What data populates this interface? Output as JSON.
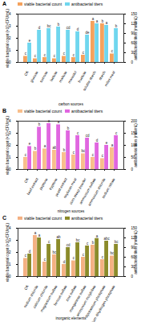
{
  "chart_data": [
    {
      "type": "bar",
      "title": "A",
      "legend": "top",
      "xlabel": "carbon sources",
      "ylabel": "viable bacterial count (×10⁸CFU/mL)",
      "y2label": "antibacterial titers (mm/mL)",
      "categories": [
        "CK",
        "glucose",
        "sucrose",
        "lactose",
        "maltose",
        "mannitol",
        "fructose",
        "soluble starch",
        "starch",
        "millet meal"
      ],
      "series": [
        {
          "name": "viable bacterial count",
          "color": "#f5a25d",
          "values": [
            0.5,
            0.3,
            0.4,
            0.3,
            0.5,
            0.4,
            0.6,
            3.4,
            3.2,
            0.7
          ],
          "letters": [
            "c",
            "c",
            "c",
            "c",
            "c",
            "c",
            "c",
            "a",
            "b",
            "c"
          ]
        },
        {
          "name": "antibacterial titers",
          "color": "#6fd6ee",
          "axis": "y2",
          "values": [
            60,
            100,
            105,
            110,
            100,
            95,
            85,
            120,
            115,
            105
          ],
          "letters": [
            "e",
            "d",
            "bc",
            "b",
            "cd",
            "d",
            "de",
            "a",
            "a",
            "b"
          ]
        }
      ],
      "ylim": [
        0,
        4
      ],
      "yticks": [
        0,
        1,
        2,
        3,
        4
      ],
      "y2lim": [
        0,
        150
      ],
      "y2ticks": [
        0,
        30,
        60,
        90,
        120,
        150
      ]
    },
    {
      "type": "bar",
      "title": "B",
      "legend": "top",
      "xlabel": "nitrogen sources",
      "ylabel": "viable bacterial count (×10⁸CFU/mL)",
      "y2label": "antibacterial titers (mm/mL)",
      "categories": [
        "CK",
        "beef extract",
        "peptone",
        "tryptone",
        "yeast extract",
        "soybean meal",
        "corn steep powder",
        "ammonium sulfate",
        "ammonium chloride",
        "sodium nitrate"
      ],
      "series": [
        {
          "name": "viable bacterial count",
          "color": "#f8bf8c",
          "values": [
            1.0,
            1.5,
            1.7,
            1.6,
            1.4,
            1.2,
            1.3,
            1.0,
            0.9,
            1.8
          ],
          "letters": [
            "c",
            "b",
            "a",
            "ab",
            "b",
            "c",
            "bc",
            "c",
            "c",
            "a"
          ]
        },
        {
          "name": "antibacterial titers",
          "color": "#e066e0",
          "axis": "y2",
          "values": [
            95,
            175,
            190,
            185,
            160,
            140,
            130,
            110,
            100,
            140
          ],
          "letters": [
            "e",
            "b",
            "a",
            "a",
            "b",
            "c",
            "cd",
            "d",
            "e",
            "c"
          ]
        }
      ],
      "ylim": [
        0,
        4
      ],
      "yticks": [
        0,
        1,
        2,
        3,
        4
      ],
      "y2lim": [
        0,
        200
      ],
      "y2ticks": [
        0,
        50,
        100,
        150,
        200
      ]
    },
    {
      "type": "bar",
      "title": "C",
      "legend": "top",
      "xlabel": "inorganic elements",
      "ylabel": "viable bacterial count (×10⁸CFU/mL)",
      "y2label": "antibacterial titers (mm/mL)",
      "categories": [
        "CK",
        "sodium chloride",
        "calcium chloride",
        "magnesium sulfate",
        "ferrous sulfate",
        "zinc sulfate",
        "manganese sulfate",
        "ammonium molybdate",
        "dipotassium phosphate",
        "potassium dihydrogen phosphate"
      ],
      "series": [
        {
          "name": "viable bacterial count",
          "color": "#f4b183",
          "values": [
            1.5,
            3.4,
            1.2,
            1.8,
            1.0,
            1.3,
            1.6,
            2.6,
            1.4,
            1.7
          ],
          "letters": [
            "c",
            "a",
            "c",
            "bc",
            "d",
            "c",
            "c",
            "b",
            "c",
            "bc"
          ]
        },
        {
          "name": "antibacterial titers",
          "color": "#8b8b2a",
          "axis": "y2",
          "values": [
            70,
            120,
            100,
            115,
            90,
            105,
            95,
            118,
            110,
            100
          ],
          "letters": [
            "d",
            "a",
            "c",
            "ab",
            "cd",
            "bc",
            "c",
            "a",
            "abc",
            "bc"
          ]
        }
      ],
      "ylim": [
        0,
        4
      ],
      "yticks": [
        0,
        1,
        2,
        3,
        4
      ],
      "y2lim": [
        0,
        150
      ],
      "y2ticks": [
        0,
        30,
        60,
        90,
        120,
        150
      ]
    }
  ]
}
